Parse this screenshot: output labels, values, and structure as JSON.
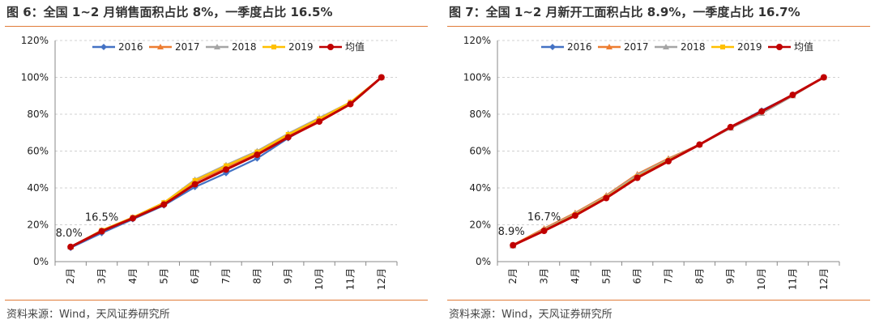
{
  "source_label": "资料来源：Wind，天风证券研究所",
  "series_colors": {
    "2016": "#4472c4",
    "2017": "#ed7d31",
    "2018": "#a5a5a5",
    "2019": "#ffc000",
    "均值": "#c00000"
  },
  "chart_data": [
    {
      "type": "line",
      "title": "图 6：全国 1~2 月销售面积占比 8%，一季度占比 16.5%",
      "xlabel": "",
      "ylabel": "",
      "categories": [
        "2月",
        "3月",
        "4月",
        "5月",
        "6月",
        "7月",
        "8月",
        "9月",
        "10月",
        "11月",
        "12月"
      ],
      "ylim": [
        0,
        120
      ],
      "yticks": [
        "0%",
        "20%",
        "40%",
        "60%",
        "80%",
        "100%",
        "120%"
      ],
      "grid": true,
      "legend_position": "top",
      "series": [
        {
          "name": "2016",
          "values": [
            7.5,
            15.5,
            23.0,
            30.5,
            40.5,
            48.0,
            56.0,
            67.0,
            76.5,
            86.0,
            100
          ]
        },
        {
          "name": "2017",
          "values": [
            8.0,
            16.5,
            24.0,
            32.0,
            43.5,
            51.0,
            58.5,
            68.5,
            77.0,
            86.0,
            100
          ]
        },
        {
          "name": "2018",
          "values": [
            8.0,
            17.0,
            24.0,
            32.0,
            44.5,
            52.5,
            60.0,
            69.5,
            78.0,
            86.5,
            100
          ]
        },
        {
          "name": "2019",
          "values": [
            8.0,
            17.0,
            24.0,
            32.0,
            44.0,
            52.0,
            59.5,
            69.0,
            77.5,
            86.5,
            100
          ]
        },
        {
          "name": "均值",
          "values": [
            8.0,
            16.5,
            23.5,
            31.0,
            42.0,
            50.0,
            58.0,
            67.5,
            76.0,
            85.5,
            100
          ]
        }
      ],
      "annotations": [
        {
          "text": "8.0%",
          "category": "2月",
          "value": 8.0
        },
        {
          "text": "16.5%",
          "category": "3月",
          "value": 16.5
        }
      ]
    },
    {
      "type": "line",
      "title": "图 7：全国 1~2 月新开工面积占比 8.9%，一季度占比 16.7%",
      "xlabel": "",
      "ylabel": "",
      "categories": [
        "2月",
        "3月",
        "4月",
        "5月",
        "6月",
        "7月",
        "8月",
        "9月",
        "10月",
        "11月",
        "12月"
      ],
      "ylim": [
        0,
        120
      ],
      "yticks": [
        "0%",
        "20%",
        "40%",
        "60%",
        "80%",
        "100%",
        "120%"
      ],
      "grid": true,
      "legend_position": "top",
      "series": [
        {
          "name": "2016",
          "values": [
            9.0,
            17.0,
            25.0,
            35.0,
            46.0,
            55.0,
            63.5,
            73.0,
            82.0,
            90.5,
            100
          ]
        },
        {
          "name": "2017",
          "values": [
            9.0,
            18.0,
            26.5,
            36.0,
            47.5,
            56.0,
            63.5,
            72.5,
            80.5,
            90.0,
            100
          ]
        },
        {
          "name": "2018",
          "values": [
            8.5,
            17.5,
            26.0,
            35.5,
            47.0,
            55.5,
            63.5,
            72.5,
            80.5,
            90.0,
            100
          ]
        },
        {
          "name": "2019",
          "values": [
            9.0,
            17.0,
            25.5,
            35.0,
            46.0,
            55.0,
            63.5,
            73.0,
            81.5,
            90.5,
            100
          ]
        },
        {
          "name": "均值",
          "values": [
            8.9,
            16.7,
            25.0,
            34.5,
            45.5,
            54.5,
            63.5,
            73.0,
            81.5,
            90.5,
            100
          ]
        }
      ],
      "annotations": [
        {
          "text": "8.9%",
          "category": "2月",
          "value": 8.9
        },
        {
          "text": "16.7%",
          "category": "3月",
          "value": 16.7
        }
      ]
    }
  ]
}
